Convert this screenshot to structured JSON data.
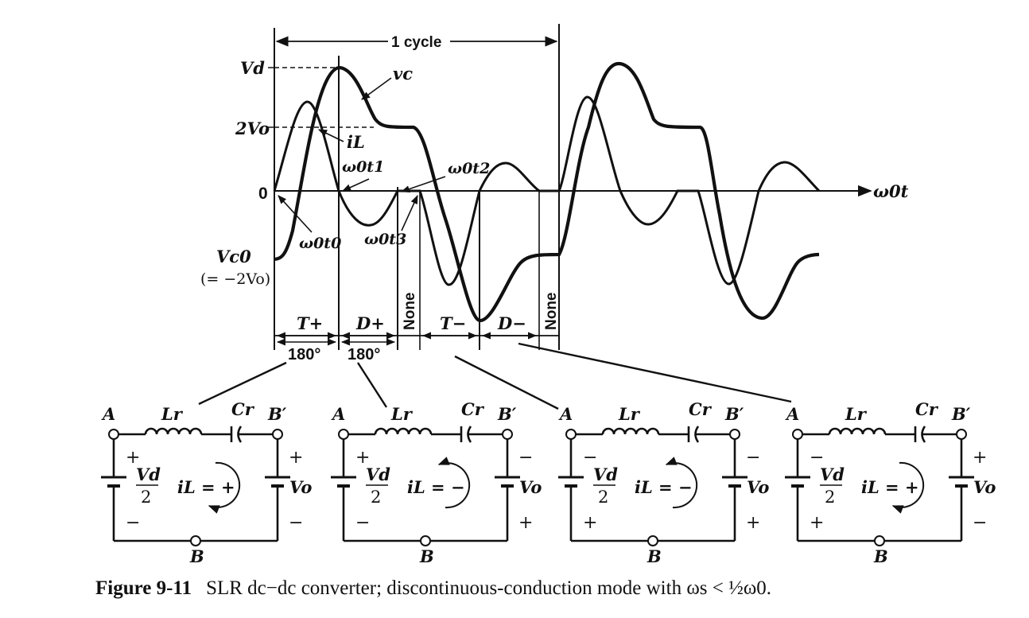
{
  "graph": {
    "cycle_label": "1 cycle",
    "axis_label": "ω0t",
    "level_vd": "Vd",
    "level_2vo": "2Vo",
    "level_zero": "0",
    "vc0_line1": "Vc0",
    "vc0_line2": "(= −2Vo)",
    "curve_vc": "vc",
    "curve_il": "iL",
    "t0_label": "ω0t0",
    "t1_label": "ω0t1",
    "t2_label": "ω0t2",
    "t3_label": "ω0t3",
    "intervals": [
      "T+",
      "D+",
      "None",
      "T−",
      "D−",
      "None"
    ],
    "angles": [
      "180°",
      "180°"
    ]
  },
  "circuits": [
    {
      "node_a": "A",
      "node_b": "B",
      "node_bp": "B′",
      "inductor": "Lr",
      "capacitor": "Cr",
      "source_left_top": "Vd",
      "source_left_bottom": "2",
      "source_right": "Vo",
      "left_top_sign": "+",
      "left_bottom_sign": "−",
      "right_top_sign": "+",
      "right_bottom_sign": "−",
      "current": "iL = +",
      "arrow": "ccw-bottom"
    },
    {
      "node_a": "A",
      "node_b": "B",
      "node_bp": "B′",
      "inductor": "Lr",
      "capacitor": "Cr",
      "source_left_top": "Vd",
      "source_left_bottom": "2",
      "source_right": "Vo",
      "left_top_sign": "+",
      "left_bottom_sign": "−",
      "right_top_sign": "−",
      "right_bottom_sign": "+",
      "current": "iL = −",
      "arrow": "cw-top"
    },
    {
      "node_a": "A",
      "node_b": "B",
      "node_bp": "B′",
      "inductor": "Lr",
      "capacitor": "Cr",
      "source_left_top": "Vd",
      "source_left_bottom": "2",
      "source_right": "Vo",
      "left_top_sign": "−",
      "left_bottom_sign": "+",
      "right_top_sign": "−",
      "right_bottom_sign": "+",
      "current": "iL = −",
      "arrow": "cw-top"
    },
    {
      "node_a": "A",
      "node_b": "B",
      "node_bp": "B′",
      "inductor": "Lr",
      "capacitor": "Cr",
      "source_left_top": "Vd",
      "source_left_bottom": "2",
      "source_right": "Vo",
      "left_top_sign": "−",
      "left_bottom_sign": "+",
      "right_top_sign": "+",
      "right_bottom_sign": "−",
      "current": "iL = +",
      "arrow": "ccw-bottom"
    }
  ],
  "caption": {
    "number": "Figure 9-11",
    "text": "SLR dc−dc converter; discontinuous-conduction mode with ωs < ½ω0."
  }
}
